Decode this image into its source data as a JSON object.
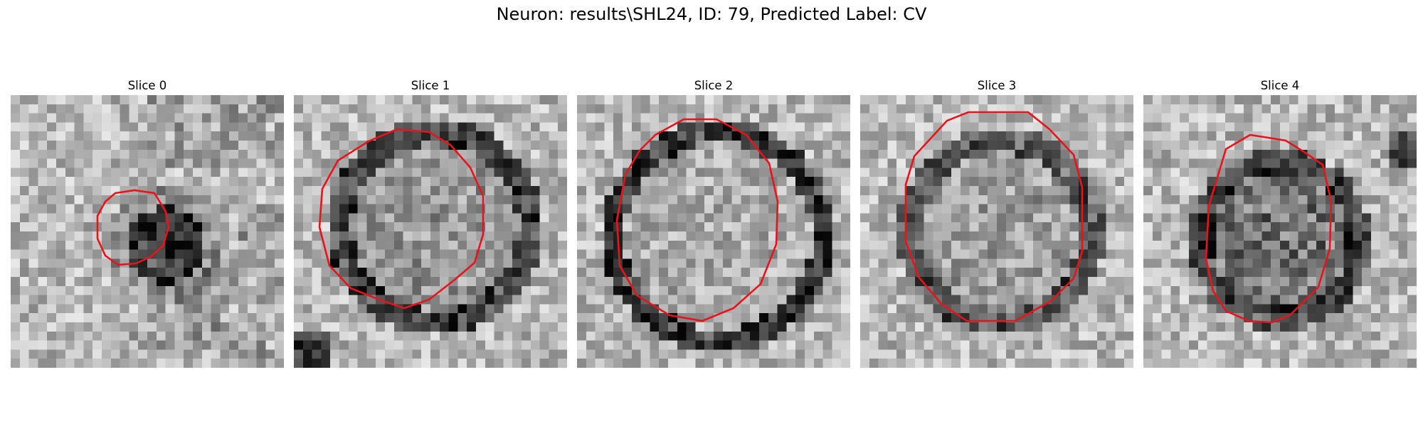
{
  "figure": {
    "title": "Neuron: results\\SHL24, ID: 79, Predicted Label: CV",
    "contour_color": "#e8141b",
    "grid_size": 30
  },
  "slices": [
    {
      "label": "Slice 0"
    },
    {
      "label": "Slice 1"
    },
    {
      "label": "Slice 2"
    },
    {
      "label": "Slice 3"
    },
    {
      "label": "Slice 4"
    }
  ]
}
